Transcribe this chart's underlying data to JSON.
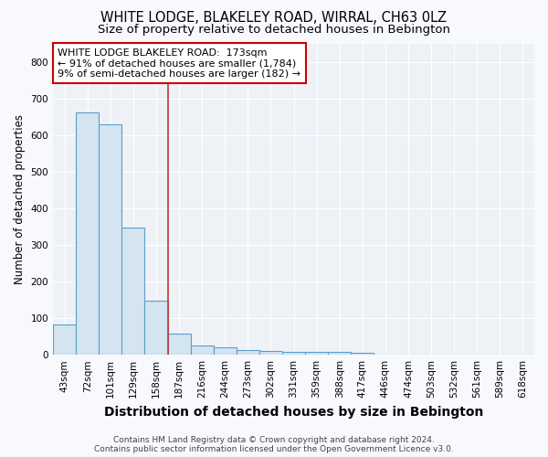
{
  "title": "WHITE LODGE, BLAKELEY ROAD, WIRRAL, CH63 0LZ",
  "subtitle": "Size of property relative to detached houses in Bebington",
  "xlabel": "Distribution of detached houses by size in Bebington",
  "ylabel": "Number of detached properties",
  "bin_labels": [
    "43sqm",
    "72sqm",
    "101sqm",
    "129sqm",
    "158sqm",
    "187sqm",
    "216sqm",
    "244sqm",
    "273sqm",
    "302sqm",
    "331sqm",
    "359sqm",
    "388sqm",
    "417sqm",
    "446sqm",
    "474sqm",
    "503sqm",
    "532sqm",
    "561sqm",
    "589sqm",
    "618sqm"
  ],
  "bar_heights": [
    83,
    662,
    630,
    348,
    148,
    57,
    26,
    20,
    13,
    10,
    7,
    7,
    7,
    5,
    0,
    0,
    0,
    0,
    0,
    0,
    0
  ],
  "bar_color": "#d4e4f0",
  "bar_edge_color": "#5b9ec9",
  "vline_x": 4.52,
  "vline_color": "#c0392b",
  "ylim": [
    0,
    850
  ],
  "yticks": [
    0,
    100,
    200,
    300,
    400,
    500,
    600,
    700,
    800
  ],
  "annotation_text": "WHITE LODGE BLAKELEY ROAD:  173sqm\n← 91% of detached houses are smaller (1,784)\n9% of semi-detached houses are larger (182) →",
  "annotation_box_color": "#ffffff",
  "annotation_box_edge_color": "#cc0000",
  "footer_text": "Contains HM Land Registry data © Crown copyright and database right 2024.\nContains public sector information licensed under the Open Government Licence v3.0.",
  "background_color": "#f7f9fc",
  "plot_bg_color": "#eef2f7",
  "grid_color": "#ffffff",
  "title_fontsize": 10.5,
  "subtitle_fontsize": 9.5,
  "xlabel_fontsize": 10,
  "ylabel_fontsize": 8.5,
  "tick_fontsize": 7.5,
  "footer_fontsize": 6.5,
  "annotation_fontsize": 8
}
